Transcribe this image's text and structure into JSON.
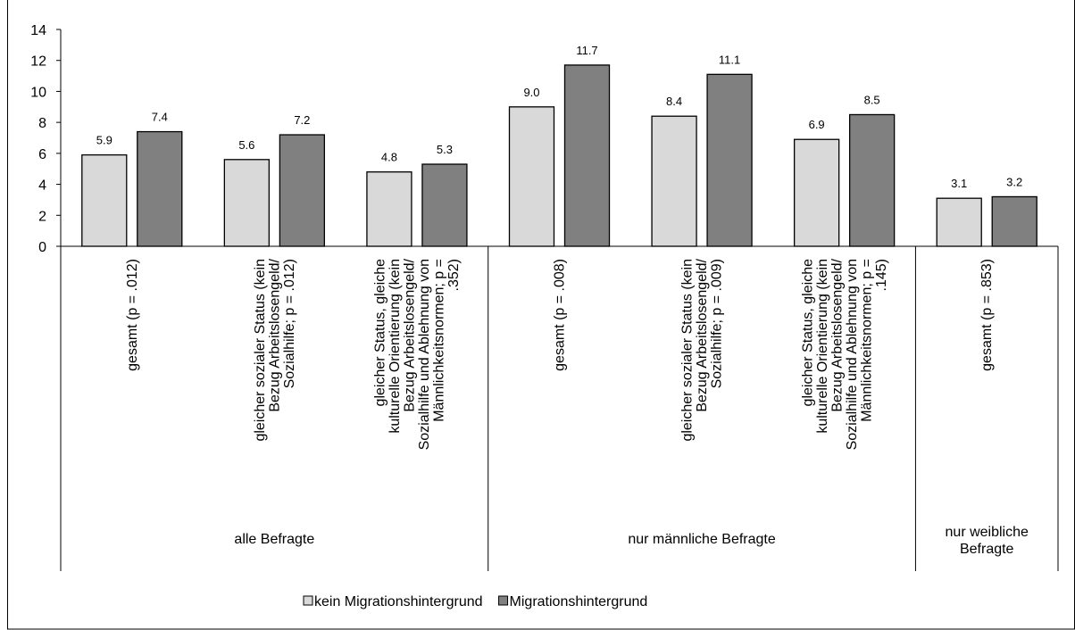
{
  "chart_data": {
    "type": "bar",
    "categories": [
      [
        "gesamt (p = .012)"
      ],
      [
        "gleicher sozialer Status (kein",
        "Bezug Arbeitslosengeld/",
        "Sozialhilfe; p = .012)"
      ],
      [
        "gleicher Status, gleiche",
        "kulturelle Orientierung (kein",
        "Bezug Arbeitslosengeld/",
        "Sozialhilfe und Ablehnung von",
        "Männlichkeitsnormen; p =",
        ".352)"
      ],
      [
        "gesamt (p = .008)"
      ],
      [
        "gleicher sozialer Status (kein",
        "Bezug Arbeitslosengeld/",
        "Sozialhilfe; p = .009)"
      ],
      [
        "gleicher Status, gleiche",
        "kulturelle Orientierung (kein",
        "Bezug Arbeitslosengeld/",
        "Sozialhilfe und Ablehnung von",
        "Männlichkeitsnormen; p =",
        ".145)"
      ],
      [
        "gesamt (p = .853)"
      ]
    ],
    "groups": [
      {
        "label": [
          "alle Befragte"
        ],
        "count": 3
      },
      {
        "label": [
          "nur männliche Befragte"
        ],
        "count": 3
      },
      {
        "label": [
          "nur weibliche",
          "Befragte"
        ],
        "count": 1
      }
    ],
    "series": [
      {
        "name": "kein Migrationshintergrund",
        "color": "#d9d9d9",
        "values": [
          5.9,
          5.6,
          4.8,
          9.0,
          8.4,
          6.9,
          3.1
        ],
        "value_labels": [
          "5.9",
          "5.6",
          "4.8",
          "9.0",
          "8.4",
          "6.9",
          "3.1"
        ]
      },
      {
        "name": "Migrationshintergrund",
        "color": "#808080",
        "values": [
          7.4,
          7.2,
          5.3,
          11.7,
          11.1,
          8.5,
          3.2
        ],
        "value_labels": [
          "7.4",
          "7.2",
          "5.3",
          "11.7",
          "11.1",
          "8.5",
          "3.2"
        ]
      }
    ],
    "ylim": [
      0,
      14
    ],
    "yticks": [
      0,
      2,
      4,
      6,
      8,
      10,
      12,
      14
    ],
    "legend": "bottom"
  }
}
